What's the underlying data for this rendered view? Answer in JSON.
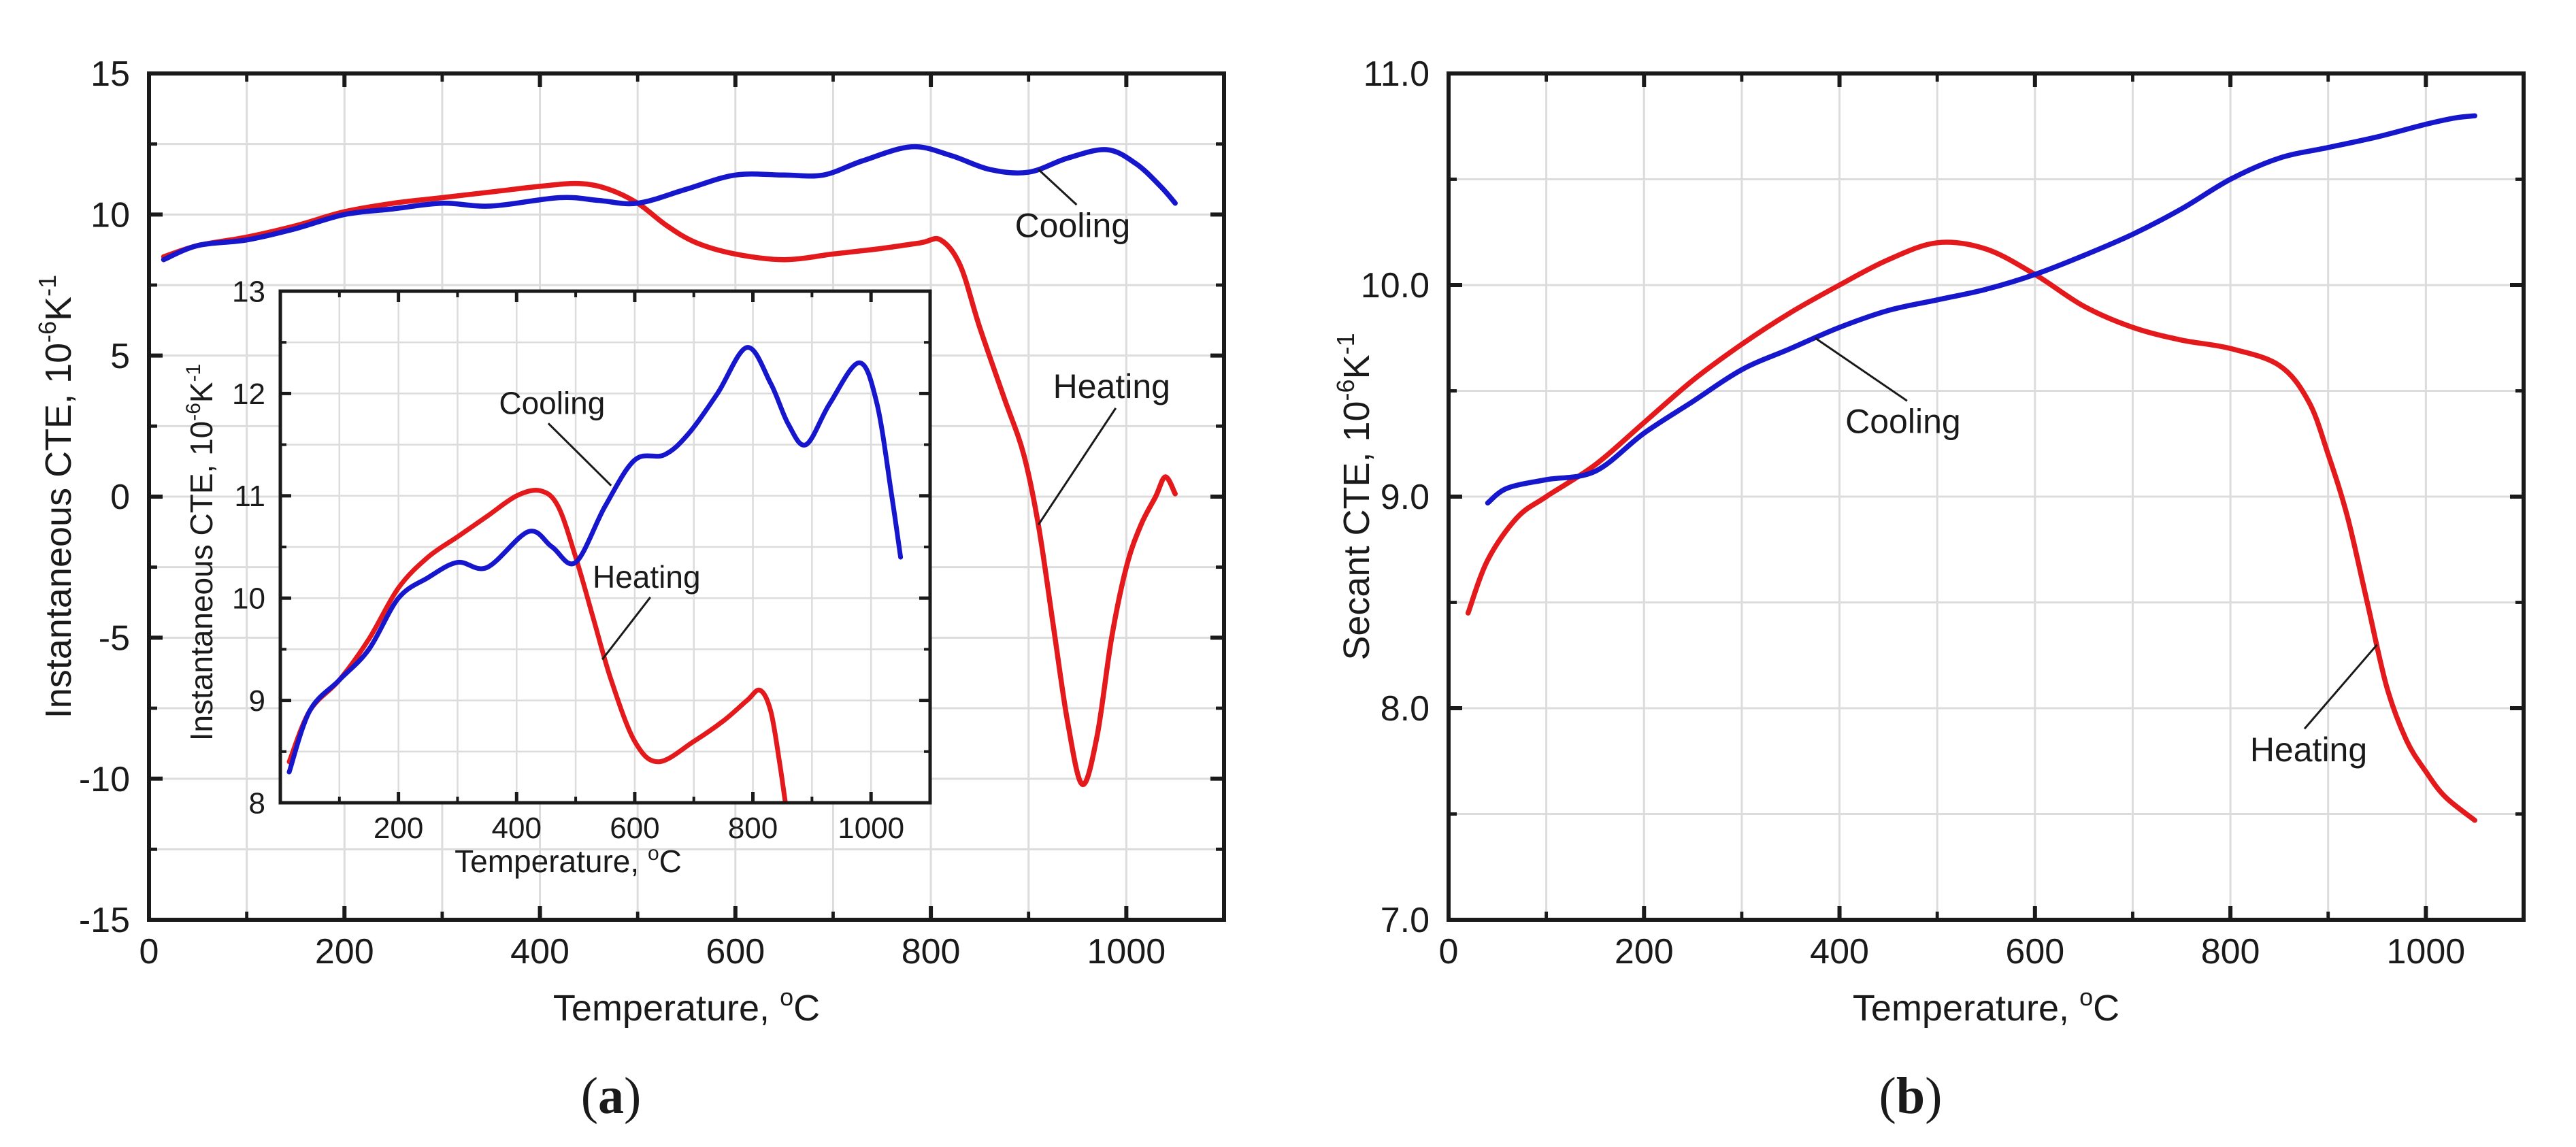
{
  "colors": {
    "heating": "#e3191c",
    "cooling": "#1616cc",
    "axis": "#1a1a1a",
    "grid": "#dcdcdc"
  },
  "chart_data": [
    {
      "id": "a-main",
      "type": "line",
      "panel_label": {
        "open": "(",
        "letter": "a",
        "close": ")"
      },
      "xlabel": "Temperature, ",
      "xlabel_sup": "o",
      "xlabel_unit": "C",
      "ylabel": "Instantaneous CTE, 10",
      "ylabel_sup": "-6",
      "ylabel_unit": "K",
      "ylabel_sup2": "-1",
      "xlim": [
        0,
        1100
      ],
      "ylim": [
        -15,
        15
      ],
      "xticks": [
        0,
        200,
        400,
        600,
        800,
        1000
      ],
      "yticks": [
        -15,
        -10,
        -5,
        0,
        5,
        10,
        15
      ],
      "xminor": [
        100,
        300,
        500,
        700,
        900
      ],
      "yminor": [
        -12.5,
        -7.5,
        -2.5,
        2.5,
        7.5,
        12.5
      ],
      "series": [
        {
          "name": "Heating",
          "color_key": "heating",
          "points": [
            [
              15,
              8.5
            ],
            [
              50,
              8.9
            ],
            [
              100,
              9.2
            ],
            [
              150,
              9.6
            ],
            [
              200,
              10.1
            ],
            [
              250,
              10.4
            ],
            [
              300,
              10.6
            ],
            [
              350,
              10.8
            ],
            [
              400,
              11.0
            ],
            [
              440,
              11.1
            ],
            [
              470,
              10.9
            ],
            [
              500,
              10.4
            ],
            [
              530,
              9.6
            ],
            [
              560,
              9.0
            ],
            [
              600,
              8.6
            ],
            [
              650,
              8.4
            ],
            [
              700,
              8.6
            ],
            [
              750,
              8.8
            ],
            [
              790,
              9.0
            ],
            [
              810,
              9.1
            ],
            [
              830,
              8.2
            ],
            [
              850,
              6.0
            ],
            [
              875,
              3.5
            ],
            [
              895,
              1.5
            ],
            [
              910,
              -1.0
            ],
            [
              925,
              -4.5
            ],
            [
              940,
              -8.0
            ],
            [
              955,
              -10.2
            ],
            [
              970,
              -8.5
            ],
            [
              985,
              -5.0
            ],
            [
              1000,
              -2.5
            ],
            [
              1015,
              -1.0
            ],
            [
              1030,
              0.0
            ],
            [
              1040,
              0.7
            ],
            [
              1050,
              0.1
            ]
          ]
        },
        {
          "name": "Cooling",
          "color_key": "cooling",
          "points": [
            [
              15,
              8.4
            ],
            [
              50,
              8.9
            ],
            [
              100,
              9.1
            ],
            [
              150,
              9.5
            ],
            [
              200,
              10.0
            ],
            [
              250,
              10.2
            ],
            [
              300,
              10.4
            ],
            [
              350,
              10.3
            ],
            [
              420,
              10.6
            ],
            [
              460,
              10.5
            ],
            [
              500,
              10.4
            ],
            [
              550,
              10.9
            ],
            [
              600,
              11.4
            ],
            [
              650,
              11.4
            ],
            [
              690,
              11.4
            ],
            [
              730,
              11.9
            ],
            [
              780,
              12.4
            ],
            [
              820,
              12.1
            ],
            [
              860,
              11.6
            ],
            [
              900,
              11.5
            ],
            [
              940,
              12.0
            ],
            [
              980,
              12.3
            ],
            [
              1010,
              11.8
            ],
            [
              1035,
              11.0
            ],
            [
              1050,
              10.4
            ]
          ]
        }
      ],
      "annotations": [
        {
          "text": "Cooling",
          "target": [
            910,
            11.6
          ],
          "anchor": [
            945,
            9.2
          ]
        },
        {
          "text": "Heating",
          "target": [
            910,
            -1.0
          ],
          "anchor": [
            985,
            3.5
          ]
        }
      ]
    },
    {
      "id": "a-inset",
      "type": "line",
      "xlabel": "Temperature, ",
      "xlabel_sup": "o",
      "xlabel_unit": "C",
      "ylabel": "Instantaneous CTE, 10",
      "ylabel_sup": "-6",
      "ylabel_unit": "K",
      "ylabel_sup2": "-1",
      "xlim": [
        0,
        1100
      ],
      "ylim": [
        8,
        13
      ],
      "xticks": [
        200,
        400,
        600,
        800,
        1000
      ],
      "yticks": [
        8,
        9,
        10,
        11,
        12,
        13
      ],
      "xminor": [
        0,
        100,
        300,
        500,
        700,
        900,
        1100
      ],
      "yminor": [
        8.5,
        9.5,
        10.5,
        11.5,
        12.5
      ],
      "series": [
        {
          "name": "Heating",
          "color_key": "heating",
          "points": [
            [
              15,
              8.4
            ],
            [
              50,
              8.9
            ],
            [
              100,
              9.2
            ],
            [
              150,
              9.6
            ],
            [
              200,
              10.1
            ],
            [
              250,
              10.4
            ],
            [
              300,
              10.6
            ],
            [
              350,
              10.8
            ],
            [
              400,
              11.0
            ],
            [
              440,
              11.05
            ],
            [
              470,
              10.9
            ],
            [
              500,
              10.4
            ],
            [
              530,
              9.8
            ],
            [
              560,
              9.2
            ],
            [
              600,
              8.6
            ],
            [
              640,
              8.4
            ],
            [
              700,
              8.6
            ],
            [
              750,
              8.8
            ],
            [
              790,
              9.0
            ],
            [
              812,
              9.1
            ],
            [
              830,
              8.9
            ],
            [
              845,
              8.4
            ],
            [
              855,
              8.0
            ]
          ]
        },
        {
          "name": "Cooling",
          "color_key": "cooling",
          "points": [
            [
              15,
              8.3
            ],
            [
              50,
              8.9
            ],
            [
              100,
              9.2
            ],
            [
              150,
              9.5
            ],
            [
              200,
              10.0
            ],
            [
              250,
              10.2
            ],
            [
              300,
              10.35
            ],
            [
              350,
              10.3
            ],
            [
              420,
              10.65
            ],
            [
              460,
              10.5
            ],
            [
              500,
              10.35
            ],
            [
              550,
              10.9
            ],
            [
              600,
              11.35
            ],
            [
              650,
              11.4
            ],
            [
              690,
              11.6
            ],
            [
              740,
              12.0
            ],
            [
              790,
              12.45
            ],
            [
              830,
              12.1
            ],
            [
              860,
              11.7
            ],
            [
              890,
              11.5
            ],
            [
              930,
              11.9
            ],
            [
              980,
              12.3
            ],
            [
              1010,
              11.9
            ],
            [
              1035,
              11.0
            ],
            [
              1050,
              10.4
            ]
          ]
        }
      ],
      "annotations": [
        {
          "text": "Cooling",
          "target": [
            560,
            11.1
          ],
          "anchor": [
            460,
            11.8
          ]
        },
        {
          "text": "Heating",
          "target": [
            545,
            9.4
          ],
          "anchor": [
            620,
            10.1
          ]
        }
      ]
    },
    {
      "id": "b-main",
      "type": "line",
      "panel_label": {
        "open": "(",
        "letter": "b",
        "close": ")"
      },
      "xlabel": "Temperature, ",
      "xlabel_sup": "o",
      "xlabel_unit": "C",
      "ylabel": "Secant CTE, 10",
      "ylabel_sup": "-6",
      "ylabel_unit": "K",
      "ylabel_sup2": "-1",
      "xlim": [
        0,
        1100
      ],
      "ylim": [
        7.0,
        11.0
      ],
      "xticks": [
        0,
        200,
        400,
        600,
        800,
        1000
      ],
      "xticklabels": [
        "0",
        "200",
        "400",
        "600",
        "800",
        "1000"
      ],
      "yticks": [
        7.0,
        8.0,
        9.0,
        10.0,
        11.0
      ],
      "yticklabels": [
        "7.0",
        "8.0",
        "9.0",
        "10.0",
        "11.0"
      ],
      "xminor": [
        100,
        300,
        500,
        700,
        900
      ],
      "yminor": [
        7.5,
        8.5,
        9.5,
        10.5
      ],
      "series": [
        {
          "name": "Heating",
          "color_key": "heating",
          "points": [
            [
              20,
              8.45
            ],
            [
              40,
              8.7
            ],
            [
              70,
              8.9
            ],
            [
              100,
              9.0
            ],
            [
              150,
              9.15
            ],
            [
              200,
              9.35
            ],
            [
              250,
              9.55
            ],
            [
              300,
              9.72
            ],
            [
              350,
              9.87
            ],
            [
              400,
              10.0
            ],
            [
              450,
              10.12
            ],
            [
              500,
              10.2
            ],
            [
              550,
              10.17
            ],
            [
              600,
              10.05
            ],
            [
              650,
              9.9
            ],
            [
              700,
              9.8
            ],
            [
              750,
              9.74
            ],
            [
              800,
              9.7
            ],
            [
              850,
              9.62
            ],
            [
              880,
              9.45
            ],
            [
              900,
              9.2
            ],
            [
              920,
              8.9
            ],
            [
              940,
              8.5
            ],
            [
              960,
              8.1
            ],
            [
              980,
              7.85
            ],
            [
              1000,
              7.7
            ],
            [
              1020,
              7.58
            ],
            [
              1050,
              7.47
            ]
          ]
        },
        {
          "name": "Cooling",
          "color_key": "cooling",
          "points": [
            [
              40,
              8.97
            ],
            [
              60,
              9.04
            ],
            [
              100,
              9.08
            ],
            [
              150,
              9.12
            ],
            [
              200,
              9.3
            ],
            [
              250,
              9.45
            ],
            [
              300,
              9.6
            ],
            [
              350,
              9.7
            ],
            [
              400,
              9.8
            ],
            [
              450,
              9.88
            ],
            [
              500,
              9.93
            ],
            [
              550,
              9.98
            ],
            [
              600,
              10.05
            ],
            [
              650,
              10.14
            ],
            [
              700,
              10.24
            ],
            [
              750,
              10.36
            ],
            [
              800,
              10.5
            ],
            [
              850,
              10.6
            ],
            [
              900,
              10.65
            ],
            [
              950,
              10.7
            ],
            [
              1000,
              10.76
            ],
            [
              1030,
              10.79
            ],
            [
              1050,
              10.8
            ]
          ]
        }
      ],
      "annotations": [
        {
          "text": "Cooling",
          "target": [
            375,
            9.75
          ],
          "anchor": [
            465,
            9.3
          ]
        },
        {
          "text": "Heating",
          "target": [
            950,
            8.3
          ],
          "anchor": [
            880,
            7.75
          ]
        }
      ]
    }
  ]
}
